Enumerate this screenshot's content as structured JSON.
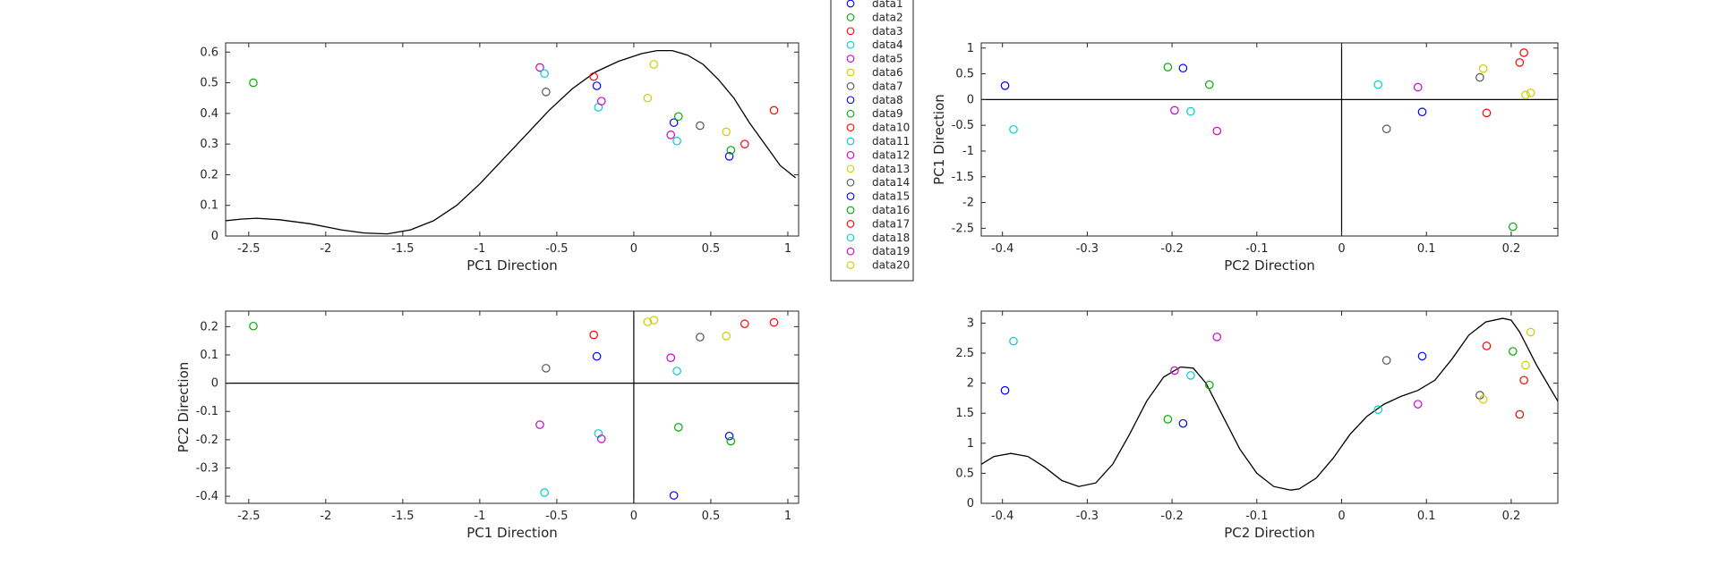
{
  "colors": [
    "#0000ff",
    "#00aa00",
    "#ff0000",
    "#00cccc",
    "#cc00cc",
    "#cccc00",
    "#555555"
  ],
  "legend": {
    "placement": "between top panels",
    "entries": [
      "data1",
      "data2",
      "data3",
      "data4",
      "data5",
      "data6",
      "data7",
      "data8",
      "data9",
      "data10",
      "data11",
      "data12",
      "data13",
      "data14",
      "data15",
      "data16",
      "data17",
      "data18",
      "data19",
      "data20"
    ]
  },
  "chart_data": [
    {
      "id": "tl",
      "type": "scatter",
      "xlabel": "PC1 Direction",
      "ylabel": "",
      "xlim": [
        -2.65,
        1.07
      ],
      "ylim": [
        0,
        0.63
      ],
      "xticks": [
        -2.5,
        -2,
        -1.5,
        -1,
        -0.5,
        0,
        0.5,
        1
      ],
      "yticks": [
        0,
        0.1,
        0.2,
        0.3,
        0.4,
        0.5,
        0.6
      ],
      "grid": false,
      "zero_lines": false,
      "points": [
        {
          "x": -2.47,
          "y": 0.5,
          "c": 1
        },
        {
          "x": -0.61,
          "y": 0.55,
          "c": 4
        },
        {
          "x": -0.58,
          "y": 0.53,
          "c": 3
        },
        {
          "x": -0.57,
          "y": 0.47,
          "c": 6
        },
        {
          "x": -0.26,
          "y": 0.52,
          "c": 2
        },
        {
          "x": -0.24,
          "y": 0.49,
          "c": 0
        },
        {
          "x": -0.23,
          "y": 0.42,
          "c": 3
        },
        {
          "x": -0.21,
          "y": 0.44,
          "c": 4
        },
        {
          "x": 0.09,
          "y": 0.45,
          "c": 5
        },
        {
          "x": 0.13,
          "y": 0.56,
          "c": 5
        },
        {
          "x": 0.24,
          "y": 0.33,
          "c": 4
        },
        {
          "x": 0.26,
          "y": 0.37,
          "c": 0
        },
        {
          "x": 0.28,
          "y": 0.31,
          "c": 3
        },
        {
          "x": 0.29,
          "y": 0.39,
          "c": 1
        },
        {
          "x": 0.43,
          "y": 0.36,
          "c": 6
        },
        {
          "x": 0.6,
          "y": 0.34,
          "c": 5
        },
        {
          "x": 0.62,
          "y": 0.26,
          "c": 0
        },
        {
          "x": 0.63,
          "y": 0.28,
          "c": 1
        },
        {
          "x": 0.72,
          "y": 0.3,
          "c": 2
        },
        {
          "x": 0.91,
          "y": 0.41,
          "c": 2
        }
      ],
      "curve": {
        "x": [
          -2.65,
          -2.55,
          -2.45,
          -2.3,
          -2.1,
          -1.9,
          -1.75,
          -1.6,
          -1.45,
          -1.3,
          -1.15,
          -1.0,
          -0.85,
          -0.7,
          -0.55,
          -0.4,
          -0.25,
          -0.1,
          0.05,
          0.15,
          0.25,
          0.35,
          0.45,
          0.55,
          0.65,
          0.75,
          0.85,
          0.95,
          1.05
        ],
        "y": [
          0.05,
          0.055,
          0.058,
          0.053,
          0.04,
          0.02,
          0.01,
          0.007,
          0.02,
          0.05,
          0.1,
          0.17,
          0.25,
          0.33,
          0.41,
          0.48,
          0.535,
          0.57,
          0.595,
          0.605,
          0.605,
          0.59,
          0.56,
          0.51,
          0.45,
          0.37,
          0.3,
          0.23,
          0.19
        ]
      }
    },
    {
      "id": "tr",
      "type": "scatter",
      "xlabel": "PC2 Direction",
      "ylabel": "PC1 Direction",
      "xlim": [
        -0.425,
        0.255
      ],
      "ylim": [
        -2.65,
        1.1
      ],
      "xticks": [
        -0.4,
        -0.3,
        -0.2,
        -0.1,
        0,
        0.1,
        0.2
      ],
      "yticks": [
        -2.5,
        -2,
        -1.5,
        -1,
        -0.5,
        0,
        0.5,
        1
      ],
      "grid": false,
      "zero_lines": true,
      "points": [
        {
          "x": -0.397,
          "y": 0.27,
          "c": 0
        },
        {
          "x": -0.387,
          "y": -0.58,
          "c": 3
        },
        {
          "x": -0.205,
          "y": 0.63,
          "c": 1
        },
        {
          "x": -0.197,
          "y": -0.21,
          "c": 4
        },
        {
          "x": -0.187,
          "y": 0.61,
          "c": 0
        },
        {
          "x": -0.178,
          "y": -0.23,
          "c": 3
        },
        {
          "x": -0.156,
          "y": 0.29,
          "c": 1
        },
        {
          "x": -0.147,
          "y": -0.61,
          "c": 4
        },
        {
          "x": 0.043,
          "y": 0.29,
          "c": 3
        },
        {
          "x": 0.053,
          "y": -0.57,
          "c": 6
        },
        {
          "x": 0.09,
          "y": 0.24,
          "c": 4
        },
        {
          "x": 0.095,
          "y": -0.24,
          "c": 0
        },
        {
          "x": 0.163,
          "y": 0.43,
          "c": 6
        },
        {
          "x": 0.167,
          "y": 0.6,
          "c": 5
        },
        {
          "x": 0.171,
          "y": -0.26,
          "c": 2
        },
        {
          "x": 0.202,
          "y": -2.47,
          "c": 1
        },
        {
          "x": 0.21,
          "y": 0.72,
          "c": 2
        },
        {
          "x": 0.215,
          "y": 0.91,
          "c": 2
        },
        {
          "x": 0.217,
          "y": 0.09,
          "c": 5
        },
        {
          "x": 0.223,
          "y": 0.13,
          "c": 5
        }
      ]
    },
    {
      "id": "bl",
      "type": "scatter",
      "xlabel": "PC1 Direction",
      "ylabel": "PC2 Direction",
      "xlim": [
        -2.65,
        1.07
      ],
      "ylim": [
        -0.425,
        0.255
      ],
      "xticks": [
        -2.5,
        -2,
        -1.5,
        -1,
        -0.5,
        0,
        0.5,
        1
      ],
      "yticks": [
        -0.4,
        -0.3,
        -0.2,
        -0.1,
        0,
        0.1,
        0.2
      ],
      "grid": false,
      "zero_lines": true,
      "points": [
        {
          "x": -2.47,
          "y": 0.202,
          "c": 1
        },
        {
          "x": -0.61,
          "y": -0.147,
          "c": 4
        },
        {
          "x": -0.58,
          "y": -0.387,
          "c": 3
        },
        {
          "x": -0.57,
          "y": 0.053,
          "c": 6
        },
        {
          "x": -0.26,
          "y": 0.171,
          "c": 2
        },
        {
          "x": -0.24,
          "y": 0.095,
          "c": 0
        },
        {
          "x": -0.23,
          "y": -0.178,
          "c": 3
        },
        {
          "x": -0.21,
          "y": -0.197,
          "c": 4
        },
        {
          "x": 0.09,
          "y": 0.217,
          "c": 5
        },
        {
          "x": 0.13,
          "y": 0.223,
          "c": 5
        },
        {
          "x": 0.24,
          "y": 0.09,
          "c": 4
        },
        {
          "x": 0.26,
          "y": -0.397,
          "c": 0
        },
        {
          "x": 0.28,
          "y": 0.043,
          "c": 3
        },
        {
          "x": 0.29,
          "y": -0.156,
          "c": 1
        },
        {
          "x": 0.43,
          "y": 0.163,
          "c": 6
        },
        {
          "x": 0.6,
          "y": 0.167,
          "c": 5
        },
        {
          "x": 0.62,
          "y": -0.187,
          "c": 0
        },
        {
          "x": 0.63,
          "y": -0.205,
          "c": 1
        },
        {
          "x": 0.72,
          "y": 0.21,
          "c": 2
        },
        {
          "x": 0.91,
          "y": 0.215,
          "c": 2
        }
      ]
    },
    {
      "id": "br",
      "type": "scatter",
      "xlabel": "PC2 Direction",
      "ylabel": "",
      "xlim": [
        -0.425,
        0.255
      ],
      "ylim": [
        0,
        3.2
      ],
      "xticks": [
        -0.4,
        -0.3,
        -0.2,
        -0.1,
        0,
        0.1,
        0.2
      ],
      "yticks": [
        0,
        0.5,
        1,
        1.5,
        2,
        2.5,
        3
      ],
      "grid": false,
      "zero_lines": false,
      "points": [
        {
          "x": -0.397,
          "y": 1.88,
          "c": 0
        },
        {
          "x": -0.387,
          "y": 2.7,
          "c": 3
        },
        {
          "x": -0.205,
          "y": 1.4,
          "c": 1
        },
        {
          "x": -0.197,
          "y": 2.21,
          "c": 4
        },
        {
          "x": -0.187,
          "y": 1.33,
          "c": 0
        },
        {
          "x": -0.178,
          "y": 2.13,
          "c": 3
        },
        {
          "x": -0.156,
          "y": 1.97,
          "c": 1
        },
        {
          "x": -0.147,
          "y": 2.77,
          "c": 4
        },
        {
          "x": 0.043,
          "y": 1.56,
          "c": 3
        },
        {
          "x": 0.053,
          "y": 2.38,
          "c": 6
        },
        {
          "x": 0.09,
          "y": 1.65,
          "c": 4
        },
        {
          "x": 0.095,
          "y": 2.45,
          "c": 0
        },
        {
          "x": 0.163,
          "y": 1.8,
          "c": 6
        },
        {
          "x": 0.167,
          "y": 1.73,
          "c": 5
        },
        {
          "x": 0.171,
          "y": 2.62,
          "c": 2
        },
        {
          "x": 0.202,
          "y": 2.53,
          "c": 1
        },
        {
          "x": 0.21,
          "y": 1.48,
          "c": 2
        },
        {
          "x": 0.215,
          "y": 2.05,
          "c": 2
        },
        {
          "x": 0.217,
          "y": 2.3,
          "c": 5
        },
        {
          "x": 0.223,
          "y": 2.85,
          "c": 5
        }
      ],
      "curve": {
        "x": [
          -0.425,
          -0.41,
          -0.39,
          -0.37,
          -0.35,
          -0.33,
          -0.31,
          -0.29,
          -0.27,
          -0.25,
          -0.23,
          -0.21,
          -0.19,
          -0.175,
          -0.16,
          -0.14,
          -0.12,
          -0.1,
          -0.08,
          -0.06,
          -0.05,
          -0.03,
          -0.01,
          0.01,
          0.03,
          0.05,
          0.07,
          0.09,
          0.11,
          0.13,
          0.15,
          0.17,
          0.19,
          0.2,
          0.21,
          0.23,
          0.255
        ],
        "y": [
          0.65,
          0.78,
          0.83,
          0.78,
          0.6,
          0.38,
          0.28,
          0.34,
          0.65,
          1.15,
          1.7,
          2.1,
          2.27,
          2.25,
          2.0,
          1.45,
          0.9,
          0.5,
          0.28,
          0.22,
          0.24,
          0.42,
          0.75,
          1.15,
          1.45,
          1.65,
          1.78,
          1.88,
          2.05,
          2.4,
          2.8,
          3.02,
          3.08,
          3.05,
          2.85,
          2.3,
          1.7
        ]
      }
    }
  ]
}
